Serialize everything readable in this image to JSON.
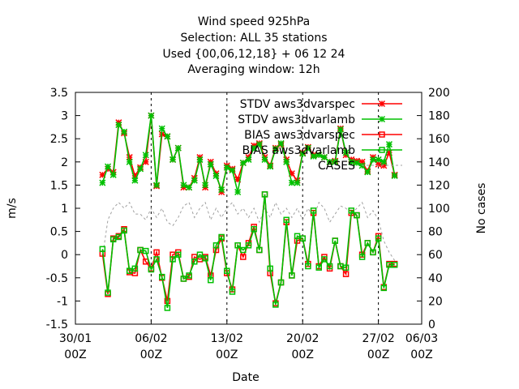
{
  "chart_data": {
    "type": "line",
    "title_lines": [
      "Wind speed 925hPa",
      "Selection: ALL      35 stations",
      "Used {00,06,12,18} + 06 12 24",
      "Averaging window: 12h"
    ],
    "xlabel": "Date",
    "ylabel": "m/s",
    "y2label": "No cases",
    "xlim": [
      0,
      32
    ],
    "ylim": [
      -1.5,
      3.5
    ],
    "y2lim": [
      0,
      200
    ],
    "x_ticks": [
      {
        "x": 0,
        "label": "30/01",
        "sub": "00Z"
      },
      {
        "x": 7,
        "label": "06/02",
        "sub": "00Z"
      },
      {
        "x": 14,
        "label": "13/02",
        "sub": "00Z"
      },
      {
        "x": 21,
        "label": "20/02",
        "sub": "00Z"
      },
      {
        "x": 28,
        "label": "27/02",
        "sub": "00Z"
      },
      {
        "x": 35,
        "label": "06/03",
        "sub": "00Z"
      }
    ],
    "y_ticks": [
      "-1.5",
      "-1",
      "-0.5",
      "0",
      "0.5",
      "1",
      "1.5",
      "2",
      "2.5",
      "3",
      "3.5"
    ],
    "y2_ticks": [
      "0",
      "20",
      "40",
      "60",
      "80",
      "100",
      "120",
      "140",
      "160",
      "180",
      "200"
    ],
    "legend_position": "top-right",
    "x": [
      2.5,
      3.0,
      3.5,
      4.0,
      4.5,
      5.0,
      5.5,
      6.0,
      6.5,
      7.0,
      7.5,
      8.0,
      8.5,
      9.0,
      9.5,
      10.0,
      10.5,
      11.0,
      11.5,
      12.0,
      12.5,
      13.0,
      13.5,
      14.0,
      14.5,
      15.0,
      15.5,
      16.0,
      16.5,
      17.0,
      17.5,
      18.0,
      18.5,
      19.0,
      19.5,
      20.0,
      20.5,
      21.0,
      21.5,
      22.0,
      22.5,
      23.0,
      23.5,
      24.0,
      24.5,
      25.0,
      25.5,
      26.0,
      26.5,
      27.0,
      27.5,
      28.0,
      28.5,
      29.0,
      29.5
    ],
    "series": [
      {
        "name": "STDV aws3dvarspec",
        "color": "#ff0000",
        "marker": "star",
        "axis": "y1",
        "values": [
          1.72,
          1.85,
          1.78,
          2.85,
          2.62,
          2.1,
          1.7,
          1.88,
          2.0,
          3.0,
          1.48,
          2.6,
          2.55,
          2.05,
          2.3,
          1.45,
          1.45,
          1.65,
          2.1,
          1.45,
          2.0,
          1.75,
          1.35,
          1.92,
          1.85,
          1.62,
          1.98,
          2.1,
          2.35,
          2.4,
          2.1,
          1.92,
          2.3,
          2.38,
          2.05,
          1.75,
          1.6,
          2.2,
          2.32,
          2.15,
          2.15,
          2.1,
          2.0,
          2.02,
          2.72,
          2.15,
          2.05,
          2.02,
          2.0,
          1.8,
          2.1,
          1.95,
          1.92,
          2.2,
          1.72
        ]
      },
      {
        "name": "STDV aws3dvarlamb",
        "color": "#00c000",
        "marker": "star",
        "axis": "y1",
        "values": [
          1.55,
          1.9,
          1.72,
          2.8,
          2.65,
          2.0,
          1.6,
          1.85,
          2.15,
          3.0,
          1.5,
          2.72,
          2.55,
          2.05,
          2.3,
          1.5,
          1.45,
          1.6,
          2.05,
          1.5,
          1.95,
          1.7,
          1.4,
          1.88,
          1.82,
          1.35,
          1.98,
          2.05,
          2.3,
          2.38,
          2.05,
          1.9,
          2.28,
          2.4,
          2.0,
          1.55,
          1.55,
          2.18,
          2.3,
          2.12,
          2.15,
          2.1,
          2.0,
          2.0,
          2.7,
          2.2,
          2.0,
          1.98,
          1.92,
          1.78,
          2.05,
          2.05,
          2.0,
          2.38,
          1.7
        ]
      },
      {
        "name": "BIAS aws3dvarspec",
        "color": "#ff0000",
        "marker": "square",
        "axis": "y1",
        "values": [
          0.02,
          -0.85,
          0.35,
          0.4,
          0.55,
          -0.38,
          -0.4,
          0.1,
          -0.15,
          -0.3,
          0.05,
          -0.5,
          -1.0,
          0.0,
          0.05,
          -0.52,
          -0.48,
          -0.05,
          -0.1,
          -0.05,
          -0.45,
          0.1,
          0.35,
          -0.4,
          -0.75,
          0.2,
          -0.05,
          0.25,
          0.6,
          0.1,
          1.3,
          -0.4,
          -1.05,
          -0.6,
          0.7,
          -0.45,
          0.3,
          0.35,
          -0.2,
          0.9,
          -0.25,
          -0.05,
          -0.3,
          0.3,
          -0.25,
          -0.42,
          0.9,
          0.85,
          0.0,
          0.25,
          0.05,
          0.4,
          -0.7,
          -0.2,
          -0.2
        ]
      },
      {
        "name": "BIAS aws3dvarlamb",
        "color": "#00c000",
        "marker": "square",
        "axis": "y1",
        "values": [
          0.12,
          -0.82,
          0.33,
          0.38,
          0.52,
          -0.35,
          -0.3,
          0.1,
          0.08,
          -0.32,
          -0.1,
          -0.48,
          -1.15,
          -0.1,
          0.0,
          -0.52,
          -0.45,
          -0.15,
          0.0,
          -0.08,
          -0.55,
          0.2,
          0.38,
          -0.35,
          -0.8,
          0.2,
          0.1,
          0.2,
          0.55,
          0.1,
          1.3,
          -0.3,
          -1.08,
          -0.6,
          0.75,
          -0.45,
          0.4,
          0.35,
          -0.25,
          0.95,
          -0.28,
          -0.1,
          -0.25,
          0.3,
          -0.25,
          -0.28,
          0.95,
          0.85,
          -0.05,
          0.25,
          0.05,
          0.35,
          -0.72,
          -0.22,
          -0.22
        ]
      },
      {
        "name": "CASES",
        "color": "#a0a0a0",
        "marker": "none",
        "dash": "3,3",
        "axis": "y2",
        "values": [
          58,
          90,
          100,
          105,
          100,
          105,
          95,
          95,
          90,
          100,
          92,
          100,
          88,
          85,
          92,
          102,
          105,
          92,
          100,
          105,
          90,
          100,
          92,
          100,
          105,
          95,
          100,
          92,
          100,
          88,
          100,
          92,
          105,
          95,
          100,
          92,
          100,
          90,
          100,
          92,
          105,
          100,
          88,
          95,
          102,
          100,
          95,
          100,
          105,
          92,
          98,
          90,
          72,
          62,
          55
        ]
      }
    ]
  }
}
